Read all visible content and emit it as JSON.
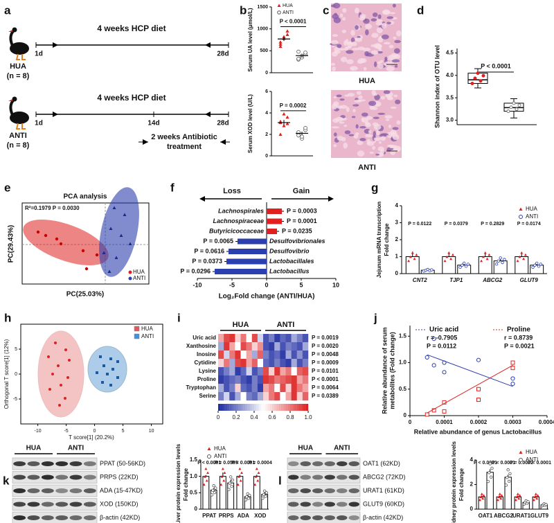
{
  "panel_labels": [
    "a",
    "b",
    "c",
    "d",
    "e",
    "f",
    "g",
    "h",
    "i",
    "j",
    "k",
    "l"
  ],
  "a": {
    "diet": "4 weeks HCP diet",
    "groups": [
      {
        "name": "HUA",
        "n": "(n = 8)"
      },
      {
        "name": "ANTI",
        "n": "(n = 8)"
      }
    ],
    "day_start": "1d",
    "day_mid": "14d",
    "day_end": "28d",
    "treatment": [
      "2 weeks Antibiotic",
      "treatment"
    ]
  },
  "b": {
    "legend": [
      "HUA",
      "ANTI"
    ],
    "colors": [
      "#e02020",
      "#555555"
    ],
    "plots": [
      {
        "ylabel": "Serum UA level (μmol/L)",
        "ylim": [
          0,
          1500
        ],
        "yticks": [
          0,
          500,
          1000,
          1500
        ],
        "p": "P < 0.0001",
        "groups": [
          {
            "values": [
              700,
              780,
              950,
              650,
              820,
              870,
              600
            ],
            "mean": 770,
            "sem": 45
          },
          {
            "values": [
              300,
              350,
              420,
              480,
              390,
              460,
              320
            ],
            "mean": 390,
            "sem": 28
          }
        ]
      },
      {
        "ylabel": "Serum XOD level (U/L)",
        "ylim": [
          0,
          6
        ],
        "yticks": [
          0,
          2,
          4,
          6
        ],
        "p": "P = 0.0002",
        "groups": [
          {
            "values": [
              3.2,
              2.8,
              3.6,
              2.0,
              3.9,
              3.0,
              3.1
            ],
            "mean": 3.1,
            "sem": 0.25
          },
          {
            "values": [
              2.0,
              1.6,
              2.4,
              2.2,
              1.8,
              2.6,
              1.9
            ],
            "mean": 2.1,
            "sem": 0.15
          }
        ]
      }
    ]
  },
  "c": {
    "captions": [
      "HUA",
      "ANTI"
    ]
  },
  "d": {
    "ylabel": "Shannon index of OTU level",
    "ylim": [
      2.9,
      4.6
    ],
    "yticks": [
      {
        "value": 3,
        "label": "3.0"
      },
      3.5,
      {
        "value": 4,
        "label": "4.0"
      },
      4.5
    ],
    "p": "P < 0.0001",
    "boxes": [
      {
        "min": 3.72,
        "q1": 3.82,
        "median": 3.9,
        "q3": 4.05,
        "max": 4.15,
        "color": "#e02020"
      },
      {
        "min": 3.05,
        "q1": 3.2,
        "median": 3.28,
        "q3": 3.38,
        "max": 3.48,
        "color": "#777777"
      }
    ]
  },
  "e": {
    "title": "PCA analysis",
    "annotation": "R²=0.1979 P = 0.0030",
    "xlabel": "PC(25.03%)",
    "ylabel": "PC(29.43%)",
    "legend": [
      "HUA",
      "ANTI"
    ],
    "colors": [
      "#e02020",
      "#2b3fae"
    ]
  },
  "f": {
    "loss": "Loss",
    "gain": "Gain",
    "xlabel": "Log₂Fold change (ANTI/HUA)",
    "xlim": [
      -10,
      10
    ],
    "xticks": [
      -10,
      -5,
      0,
      5,
      10
    ],
    "colors": [
      "#e02020",
      "#2b3fae"
    ],
    "categories": [
      "Lachnospirales",
      "Lachnospiraceae",
      "Butyricicoccaceae",
      "Desulfovibrionales",
      "Desulfovibrio",
      "Lactobacillales",
      "Lactobacillus"
    ],
    "values": [
      2.2,
      2.2,
      1.5,
      -4.2,
      -5.5,
      -5.8,
      -7.5
    ],
    "errors": [
      0.3,
      0.3,
      0.3,
      0.3,
      0.3,
      0.3,
      0.3
    ],
    "p": [
      "P = 0.0003",
      "P = 0.0001",
      "P = 0.0235",
      "P = 0.0065",
      "P = 0.0616",
      "P = 0.0373",
      "P = 0.0296"
    ]
  },
  "g": {
    "ylabel": [
      "Jejunum mRNA transcription",
      "Fold change"
    ],
    "ylim": [
      0,
      4
    ],
    "yticks": [
      0,
      1,
      2,
      3,
      4
    ],
    "categories": [
      "CNT2",
      "TJP1",
      "ABCG2",
      "GLUT9"
    ],
    "p": [
      "P = 0.0122",
      "P = 0.0379",
      "P = 0.2829",
      "P = 0.0174"
    ],
    "series": [
      {
        "name": "HUA",
        "color": "#e02020",
        "values": [
          1.0,
          1.0,
          1.0,
          1.0
        ],
        "sem": [
          0.3,
          0.25,
          0.25,
          0.25
        ]
      },
      {
        "name": "ANTI",
        "color": "#2b3fae",
        "values": [
          0.2,
          0.5,
          0.75,
          0.5
        ],
        "sem": [
          0.1,
          0.2,
          0.1,
          0.1
        ]
      }
    ]
  },
  "h": {
    "xlabel": "T score[1] (20.2%)",
    "ylabel": "Orthogonal T score[1] (12%)",
    "xlim": [
      -13,
      12
    ],
    "xticks": [
      -10,
      -5,
      0,
      5,
      10
    ],
    "ylim": [
      -10,
      10
    ],
    "yticks": [
      -5,
      0,
      5
    ],
    "legend": [
      "HUA",
      "ANTI"
    ],
    "colors": [
      "#e05a5a",
      "#4a8fd0"
    ]
  },
  "i": {
    "groups": [
      "HUA",
      "ANTI"
    ],
    "rows": [
      "Uric acid",
      "Xanthosine",
      "Inosine",
      "Cytidine",
      "Lysine",
      "Proline",
      "Tryptophan",
      "Serine"
    ],
    "p": [
      "P = 0.0019",
      "P = 0.0020",
      "P = 0.0048",
      "P = 0.0009",
      "P = 0.0101",
      "P < 0.0001",
      "P = 0.0064",
      "P = 0.0389"
    ],
    "clim": [
      0,
      1
    ],
    "cticks": [
      0,
      0.2,
      0.4,
      0.6,
      0.8,
      {
        "value": 1,
        "label": "1.0"
      }
    ],
    "matrix": [
      [
        0.7,
        0.9,
        0.95,
        0.6,
        0.8,
        0.5,
        0.9,
        0.4,
        0.1,
        0.2,
        0.05,
        0.15,
        0.1,
        0.3,
        0.2,
        0.1
      ],
      [
        0.3,
        0.95,
        0.7,
        0.5,
        0.9,
        0.8,
        0.6,
        0.75,
        0.1,
        0.05,
        0.3,
        0.1,
        0.2,
        0.15,
        0.1,
        0.3
      ],
      [
        0.9,
        0.4,
        0.8,
        0.95,
        0.5,
        0.7,
        0.3,
        0.85,
        0.2,
        0.1,
        0.15,
        0.05,
        0.3,
        0.1,
        0.25,
        0.1
      ],
      [
        0.6,
        0.8,
        0.3,
        0.9,
        0.95,
        0.7,
        0.85,
        0.5,
        0.15,
        0.1,
        0.2,
        0.1,
        0.05,
        0.3,
        0.1,
        0.2
      ],
      [
        0.1,
        0.2,
        0.3,
        0.05,
        0.15,
        0.4,
        0.1,
        0.2,
        0.9,
        0.6,
        0.95,
        0.7,
        0.8,
        0.5,
        0.85,
        0.9
      ],
      [
        0.05,
        0.1,
        0.15,
        0.2,
        0.1,
        0.05,
        0.2,
        0.1,
        0.95,
        0.9,
        0.8,
        0.85,
        0.9,
        0.95,
        0.7,
        0.8
      ],
      [
        0.3,
        0.1,
        0.2,
        0.6,
        0.15,
        0.1,
        0.2,
        0.05,
        0.7,
        0.8,
        0.5,
        0.9,
        0.6,
        0.95,
        0.8,
        0.7
      ],
      [
        0.2,
        0.4,
        0.1,
        0.3,
        0.5,
        0.2,
        0.15,
        0.3,
        0.6,
        0.8,
        0.9,
        0.5,
        0.7,
        0.95,
        0.6,
        0.85
      ]
    ]
  },
  "j": {
    "ylabel": [
      "Relative abundance of serum",
      "metabolites (Fold change)"
    ],
    "xlabel": "Relative abundance of genus Lactobacillus",
    "xlim": [
      0,
      0.0004
    ],
    "xticks": [
      0,
      0.0001,
      0.0002,
      0.0003,
      0.0004
    ],
    "ylim": [
      0,
      1.7
    ],
    "yticks": [
      0,
      0.5,
      {
        "value": 1,
        "label": "1.0"
      },
      1.5
    ],
    "series": [
      {
        "name": "Uric acid",
        "r": "r = -0.7905",
        "p": "P = 0.0112",
        "color": "#2b3fae",
        "points": [
          [
            5e-05,
            1.1
          ],
          [
            7e-05,
            1.45
          ],
          [
            7e-05,
            0.95
          ],
          [
            0.0001,
            0.82
          ],
          [
            0.0001,
            1.0
          ],
          [
            0.0002,
            1.05
          ],
          [
            0.0003,
            0.7
          ],
          [
            0.0003,
            0.6
          ]
        ],
        "fit": [
          [
            5e-05,
            1.15
          ],
          [
            0.0003,
            0.55
          ]
        ]
      },
      {
        "name": "Proline",
        "r": "r = 0.8739",
        "p": "P = 0.0021",
        "color": "#e02020",
        "points": [
          [
            5e-05,
            0.02
          ],
          [
            7e-05,
            0.1
          ],
          [
            0.0001,
            0.08
          ],
          [
            0.0001,
            0.25
          ],
          [
            0.0002,
            0.3
          ],
          [
            0.0002,
            0.5
          ],
          [
            0.0003,
            1.0
          ],
          [
            0.0003,
            0.9
          ]
        ],
        "fit": [
          [
            5e-05,
            0.05
          ],
          [
            0.0003,
            0.95
          ]
        ]
      }
    ]
  },
  "k": {
    "groups": [
      "HUA",
      "ANTI"
    ],
    "blots": [
      "PPAT (50-56KD)",
      "PRPS (22KD)",
      "ADA (15-47KD)",
      "XOD (150KD)",
      "β-actin (42KD)"
    ],
    "ylabel": [
      "Liver protein expression levels",
      "Fold change"
    ],
    "ylim": [
      0,
      1.5
    ],
    "yticks": [
      0,
      0.5,
      {
        "value": 1,
        "label": "1.0"
      },
      1.5
    ],
    "categories": [
      "PPAT",
      "PRPS",
      "ADA",
      "XOD"
    ],
    "p": [
      "P < 0.0001",
      "P = 0.0505",
      "P < 0.0001",
      "P = 0.0004"
    ],
    "series": [
      {
        "name": "HUA",
        "color": "#e02020",
        "values": [
          1.0,
          1.0,
          1.0,
          1.0
        ],
        "sem": [
          0.04,
          0.12,
          0.05,
          0.05
        ]
      },
      {
        "name": "ANTI",
        "color": "#555555",
        "values": [
          0.58,
          0.8,
          0.38,
          0.45
        ],
        "sem": [
          0.06,
          0.1,
          0.05,
          0.08
        ]
      }
    ]
  },
  "l": {
    "groups": [
      "HUA",
      "ANTI"
    ],
    "blots": [
      "OAT1 (62KD)",
      "ABCG2 (72KD)",
      "URAT1 (61KD)",
      "GLUT9 (60KD)",
      "β-actin (42KD)"
    ],
    "ylabel": [
      "Kidney protein expression levels",
      "Fold change"
    ],
    "ylim": [
      0,
      4
    ],
    "yticks": [
      0,
      2,
      4
    ],
    "categories": [
      "OAT1",
      "ABCG2",
      "URAT1",
      "GLUT9"
    ],
    "p": [
      "P < 0.0001",
      "P < 0.0001",
      "P = 0.0002",
      "P < 0.0001"
    ],
    "series": [
      {
        "name": "HUA",
        "color": "#e02020",
        "values": [
          1.0,
          1.0,
          1.0,
          1.0
        ],
        "sem": [
          0.1,
          0.1,
          0.1,
          0.1
        ]
      },
      {
        "name": "ANTI",
        "color": "#555555",
        "values": [
          3.0,
          2.6,
          0.55,
          0.35
        ],
        "sem": [
          0.25,
          0.2,
          0.08,
          0.06
        ]
      }
    ]
  }
}
